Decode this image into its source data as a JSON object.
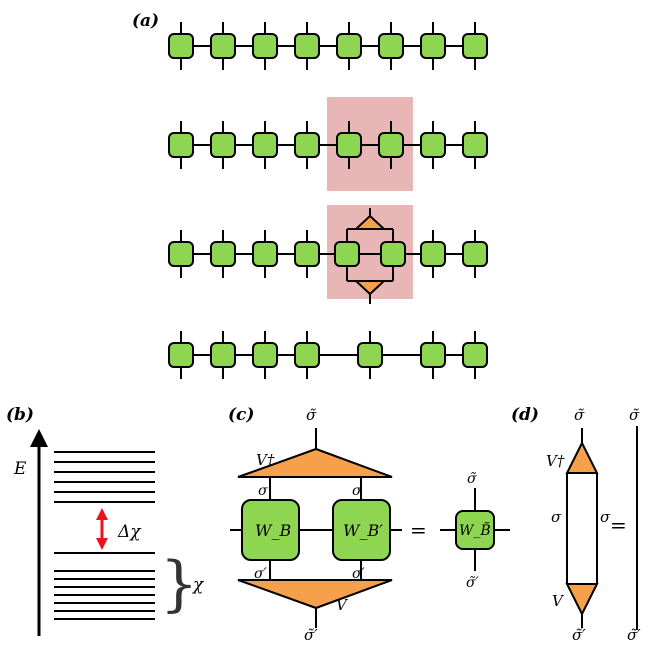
{
  "panels": {
    "a": {
      "label": "(a)"
    },
    "b": {
      "label": "(b)",
      "energy_axis": "E",
      "gap_label": "Δχ",
      "bond_label": "χ"
    },
    "c": {
      "label": "(c)",
      "top_index": "σ̃",
      "bottom_index": "σ̃′",
      "left_top_bond": "σ",
      "right_top_bond": "σ",
      "left_bottom_bond": "σ′",
      "right_bottom_bond": "σ′",
      "isometry_top": "V†",
      "isometry_bottom": "V",
      "tensor_left": "W_B",
      "tensor_right": "W_B′",
      "equals": "=",
      "result_tensor": "W_B̃",
      "result_top": "σ̃",
      "result_bottom": "σ̃′"
    },
    "d": {
      "label": "(d)",
      "top_index": "σ̃",
      "bottom_index": "σ̃′",
      "isometry_top": "V†",
      "isometry_bottom": "V",
      "bond_left": "σ",
      "bond_right": "σ",
      "equals": "=",
      "identity_top": "σ̃",
      "identity_bottom": "σ̃′"
    }
  },
  "colors": {
    "tensor_fill": "#8ed552",
    "isometry_fill": "#f7a04c",
    "highlight": "#e8b6b4",
    "gap_arrow": "#e8151f",
    "line": "#000000"
  }
}
